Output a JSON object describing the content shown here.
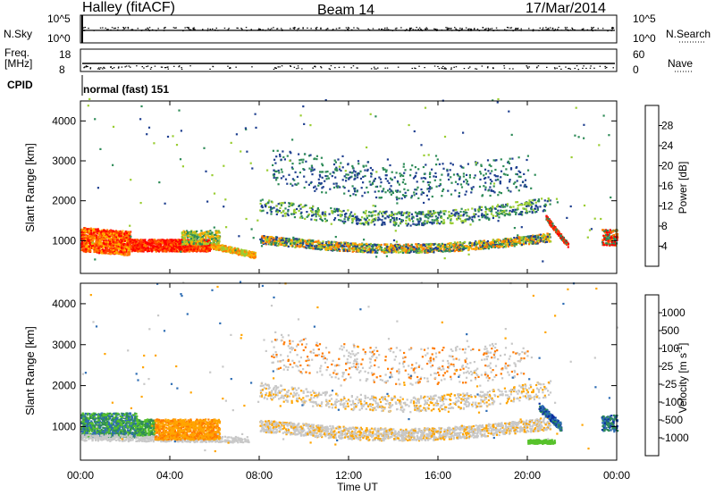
{
  "header": {
    "station": "Halley (fitACF)",
    "beam": "Beam 14",
    "date": "17/Mar/2014"
  },
  "summary_panels": {
    "nsky_label": "N.Sky",
    "nsky_ticks": [
      "10^5",
      "10^0"
    ],
    "nsearch_label": "N.Search",
    "nsearch_ticks": [
      "10^5",
      "10^0"
    ],
    "freq_label_top": "Freq.",
    "freq_label_unit": "[MHz]",
    "freq_ticks": [
      "18",
      "8"
    ],
    "nave_label": "Nave",
    "nave_ticks": [
      "60",
      "0"
    ],
    "cpid_label": "CPID",
    "cpid_value": "normal (fast) 151"
  },
  "chart_data": [
    {
      "type": "heatmap",
      "name": "power",
      "ylabel": "Slant Range [km]",
      "xlabel": "",
      "xlim_hours": [
        0,
        24
      ],
      "ylim_km": [
        180,
        4500
      ],
      "y_ticks": [
        1000,
        2000,
        3000,
        4000
      ],
      "colorbar": {
        "label": "Power [dB]",
        "ticks": [
          "28",
          "24",
          "20",
          "16",
          "12",
          "8",
          "4"
        ],
        "colors": [
          "#ff0000",
          "#ff3a00",
          "#ff7a00",
          "#ffb000",
          "#9acd32",
          "#2e8b57",
          "#1f3f8f",
          "#0000ff"
        ]
      }
    },
    {
      "type": "heatmap",
      "name": "velocity",
      "ylabel": "Slant Range [km]",
      "xlabel": "Time UT",
      "xlim_hours": [
        0,
        24
      ],
      "ylim_km": [
        180,
        4500
      ],
      "y_ticks": [
        1000,
        2000,
        3000,
        4000
      ],
      "x_ticks": [
        "00:00",
        "04:00",
        "08:00",
        "12:00",
        "16:00",
        "20:00",
        "00:00"
      ],
      "colorbar": {
        "label": "Velocity [m s^-1]",
        "ticks": [
          "1000",
          "500",
          "100",
          "25",
          "-25",
          "-100",
          "-500",
          "-1000"
        ],
        "colors": [
          "#0a2fa0",
          "#2e6db4",
          "#2e8b57",
          "#57c22b",
          "#c8c8c8",
          "#ffa500",
          "#ff7a00",
          "#ff3a00",
          "#ff0000"
        ]
      }
    }
  ]
}
